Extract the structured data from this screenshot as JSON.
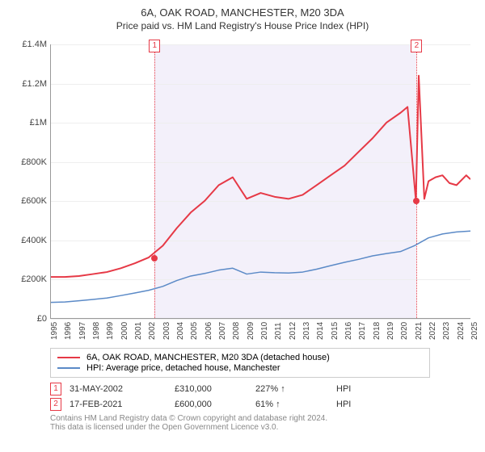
{
  "title": "6A, OAK ROAD, MANCHESTER, M20 3DA",
  "subtitle": "Price paid vs. HM Land Registry's House Price Index (HPI)",
  "chart": {
    "type": "line",
    "background_color": "#ffffff",
    "grid_color": "#eeeeee",
    "axis_color": "#999999",
    "label_color": "#444444",
    "label_fontsize": 11,
    "title_fontsize": 13,
    "shade_color": "#f3f0fa",
    "x_years": [
      1995,
      1996,
      1997,
      1998,
      1999,
      2000,
      2001,
      2002,
      2003,
      2004,
      2005,
      2006,
      2007,
      2008,
      2009,
      2010,
      2011,
      2012,
      2013,
      2014,
      2015,
      2016,
      2017,
      2018,
      2019,
      2020,
      2021,
      2022,
      2023,
      2024,
      2025
    ],
    "y_ticks": [
      0,
      200000,
      400000,
      600000,
      800000,
      1000000,
      1200000,
      1400000
    ],
    "y_tick_labels": [
      "£0",
      "£200K",
      "£400K",
      "£600K",
      "£800K",
      "£1M",
      "£1.2M",
      "£1.4M"
    ],
    "ylim": [
      0,
      1400000
    ],
    "xlim": [
      1995,
      2025
    ],
    "highlight_band": {
      "start": 2002.4,
      "end": 2021.1
    },
    "markers": [
      {
        "id": "1",
        "x": 2002.4,
        "y": 310000
      },
      {
        "id": "2",
        "x": 2021.1,
        "y": 600000
      }
    ],
    "marker_dot_color": "#e63946",
    "series": [
      {
        "name": "6A, OAK ROAD, MANCHESTER, M20 3DA (detached house)",
        "color": "#e63946",
        "width": 2,
        "points": [
          [
            1995,
            210000
          ],
          [
            1996,
            210000
          ],
          [
            1997,
            215000
          ],
          [
            1998,
            225000
          ],
          [
            1999,
            235000
          ],
          [
            2000,
            255000
          ],
          [
            2001,
            280000
          ],
          [
            2002,
            310000
          ],
          [
            2003,
            370000
          ],
          [
            2004,
            460000
          ],
          [
            2005,
            540000
          ],
          [
            2006,
            600000
          ],
          [
            2007,
            680000
          ],
          [
            2008,
            720000
          ],
          [
            2009,
            610000
          ],
          [
            2010,
            640000
          ],
          [
            2011,
            620000
          ],
          [
            2012,
            610000
          ],
          [
            2013,
            630000
          ],
          [
            2014,
            680000
          ],
          [
            2015,
            730000
          ],
          [
            2016,
            780000
          ],
          [
            2017,
            850000
          ],
          [
            2018,
            920000
          ],
          [
            2019,
            1000000
          ],
          [
            2020,
            1050000
          ],
          [
            2020.5,
            1080000
          ],
          [
            2021.1,
            600000
          ],
          [
            2021.3,
            1240000
          ],
          [
            2021.7,
            610000
          ],
          [
            2022,
            700000
          ],
          [
            2022.5,
            720000
          ],
          [
            2023,
            730000
          ],
          [
            2023.5,
            690000
          ],
          [
            2024,
            680000
          ],
          [
            2024.7,
            730000
          ],
          [
            2025,
            710000
          ]
        ]
      },
      {
        "name": "HPI: Average price, detached house, Manchester",
        "color": "#5b8ac7",
        "width": 1.5,
        "points": [
          [
            1995,
            80000
          ],
          [
            1996,
            82000
          ],
          [
            1997,
            88000
          ],
          [
            1998,
            95000
          ],
          [
            1999,
            102000
          ],
          [
            2000,
            115000
          ],
          [
            2001,
            128000
          ],
          [
            2002,
            142000
          ],
          [
            2003,
            162000
          ],
          [
            2004,
            192000
          ],
          [
            2005,
            215000
          ],
          [
            2006,
            228000
          ],
          [
            2007,
            245000
          ],
          [
            2008,
            255000
          ],
          [
            2009,
            225000
          ],
          [
            2010,
            235000
          ],
          [
            2011,
            232000
          ],
          [
            2012,
            230000
          ],
          [
            2013,
            235000
          ],
          [
            2014,
            250000
          ],
          [
            2015,
            268000
          ],
          [
            2016,
            285000
          ],
          [
            2017,
            300000
          ],
          [
            2018,
            318000
          ],
          [
            2019,
            330000
          ],
          [
            2020,
            340000
          ],
          [
            2021,
            370000
          ],
          [
            2022,
            410000
          ],
          [
            2023,
            430000
          ],
          [
            2024,
            440000
          ],
          [
            2025,
            445000
          ]
        ]
      }
    ]
  },
  "legend": {
    "row1_color": "#e63946",
    "row1_label": "6A, OAK ROAD, MANCHESTER, M20 3DA (detached house)",
    "row2_color": "#5b8ac7",
    "row2_label": "HPI: Average price, detached house, Manchester"
  },
  "events": [
    {
      "id": "1",
      "date": "31-MAY-2002",
      "price": "£310,000",
      "pct": "227% ↑",
      "suffix": "HPI"
    },
    {
      "id": "2",
      "date": "17-FEB-2021",
      "price": "£600,000",
      "pct": "61% ↑",
      "suffix": "HPI"
    }
  ],
  "footer": {
    "line1": "Contains HM Land Registry data © Crown copyright and database right 2024.",
    "line2": "This data is licensed under the Open Government Licence v3.0."
  }
}
